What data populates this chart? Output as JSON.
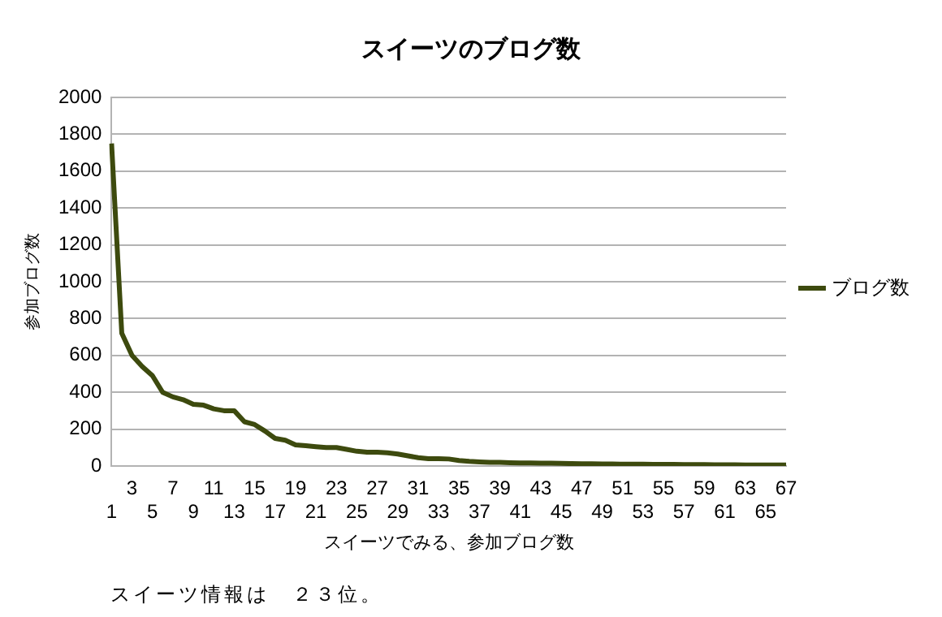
{
  "chart_data": {
    "type": "line",
    "title": "スイーツのブログ数",
    "xlabel": "スイーツでみる、参加ブログ数",
    "ylabel": "参加ブログ数",
    "categories": [
      "1",
      null,
      "3",
      null,
      "5",
      null,
      "7",
      null,
      "9",
      null,
      "11",
      null,
      "13",
      null,
      "15",
      null,
      "17",
      null,
      "19",
      null,
      "21",
      null,
      "23",
      null,
      "25",
      null,
      "27",
      null,
      "29",
      null,
      "31",
      null,
      "33",
      null,
      "35",
      null,
      "37",
      null,
      "39",
      null,
      "41",
      null,
      "43",
      null,
      "45",
      null,
      "47",
      null,
      "49",
      null,
      "51",
      null,
      "53",
      null,
      "55",
      null,
      "57",
      null,
      "59",
      null,
      "61",
      null,
      "63",
      null,
      "65",
      null,
      "67"
    ],
    "series": [
      {
        "name": "ブログ数",
        "color": "#3d4a0e",
        "values": [
          1750,
          720,
          600,
          540,
          490,
          400,
          375,
          360,
          335,
          330,
          310,
          300,
          300,
          240,
          225,
          190,
          150,
          140,
          115,
          110,
          105,
          100,
          100,
          90,
          80,
          75,
          75,
          72,
          65,
          55,
          45,
          40,
          40,
          38,
          30,
          25,
          22,
          20,
          20,
          18,
          17,
          16,
          15,
          15,
          14,
          13,
          12,
          12,
          11,
          11,
          10,
          10,
          10,
          9,
          9,
          9,
          8,
          8,
          8,
          7,
          7,
          7,
          6,
          6,
          6,
          5,
          5
        ]
      }
    ],
    "ylim": [
      0,
      2000
    ],
    "yticks": [
      0,
      200,
      400,
      600,
      800,
      1000,
      1200,
      1400,
      1600,
      1800,
      2000
    ],
    "grid": "y",
    "legend": "right",
    "marker": "none",
    "line_style": "solid",
    "annotations": [
      "スイーツ情報は　２３位。"
    ]
  }
}
